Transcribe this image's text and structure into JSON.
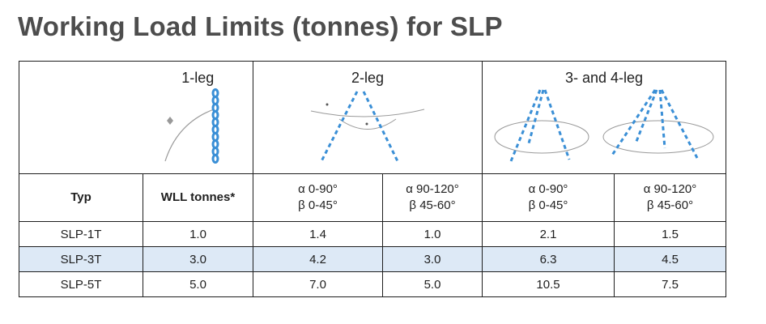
{
  "title": "Working Load Limits (tonnes) for SLP",
  "groups": {
    "leg1": "1-leg",
    "leg2": "2-leg",
    "leg34": "3- and 4-leg"
  },
  "headers": {
    "typ": "Typ",
    "wll": "WLL tonnes*",
    "c1_a": "α 0-90°",
    "c1_b": "β 0-45°",
    "c2_a": "α 90-120°",
    "c2_b": "β 45-60°",
    "c3_a": "α 0-90°",
    "c3_b": "β 0-45°",
    "c4_a": "α 90-120°",
    "c4_b": "β 45-60°"
  },
  "rows": [
    {
      "typ": "SLP-1T",
      "wll": "1.0",
      "v1": "1.4",
      "v2": "1.0",
      "v3": "2.1",
      "v4": "1.5"
    },
    {
      "typ": "SLP-3T",
      "wll": "3.0",
      "v1": "4.2",
      "v2": "3.0",
      "v3": "6.3",
      "v4": "4.5"
    },
    {
      "typ": "SLP-5T",
      "wll": "5.0",
      "v1": "7.0",
      "v2": "5.0",
      "v3": "10.5",
      "v4": "7.5"
    }
  ],
  "colors": {
    "chain": "#3a8fd6",
    "row_highlight": "#dde9f6",
    "title": "#4d4d4d"
  },
  "icons": [
    "single-leg-chain-icon",
    "two-leg-chain-icon",
    "three-leg-chain-icon",
    "four-leg-chain-icon"
  ]
}
